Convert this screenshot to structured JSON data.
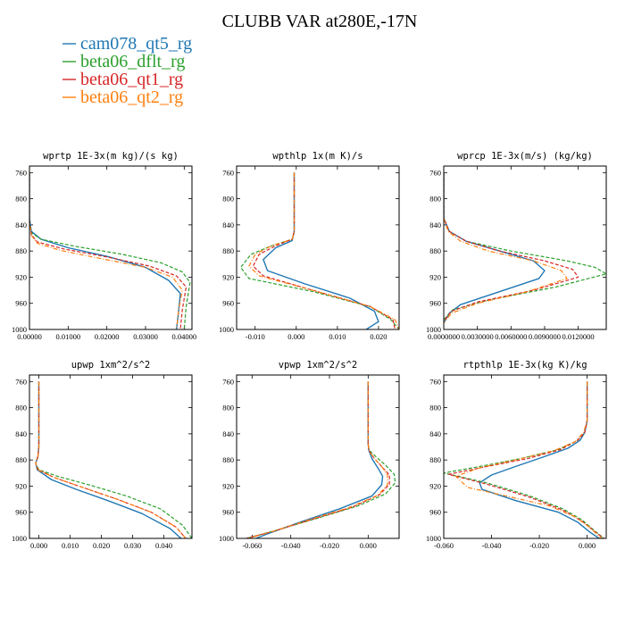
{
  "figure": {
    "title": "CLUBB VAR at280E,-17N"
  },
  "legend": [
    {
      "name": "cam078_qt5_rg",
      "color": "#1f77b4",
      "dash": "solid"
    },
    {
      "name": "beta06_dflt_rg",
      "color": "#2ca02c",
      "dash": "dashed"
    },
    {
      "name": "beta06_qt1_rg",
      "color": "#d62728",
      "dash": "dashed"
    },
    {
      "name": "beta06_qt2_rg",
      "color": "#ff7f0e",
      "dash": "dashdot"
    }
  ],
  "chart_data": [
    {
      "type": "line",
      "title": "wprtp  1E-3x(m kg)/(s kg)",
      "xlim": [
        0,
        0.042
      ],
      "ylim": [
        1000,
        750
      ],
      "xticks": [
        0,
        0.01,
        0.02,
        0.03,
        0.04
      ],
      "xtick_labels": [
        "0.00000",
        "0.01000",
        "0.02000",
        "0.03000",
        "0.04000"
      ],
      "yticks": [
        760,
        800,
        840,
        880,
        920,
        960,
        1000
      ],
      "series": [
        {
          "name": "cam078_qt5_rg",
          "x": [
            0,
            0,
            0.0005,
            0.003,
            0.01,
            0.02,
            0.03,
            0.036,
            0.039,
            0.0385,
            0.038
          ],
          "y": [
            760,
            830,
            850,
            862,
            875,
            888,
            905,
            925,
            945,
            975,
            1000
          ]
        },
        {
          "name": "beta06_dflt_rg",
          "x": [
            0,
            0,
            0.0005,
            0.003,
            0.012,
            0.024,
            0.034,
            0.0395,
            0.0415,
            0.0405,
            0.04
          ],
          "y": [
            760,
            835,
            852,
            862,
            873,
            885,
            898,
            912,
            928,
            965,
            1000
          ]
        },
        {
          "name": "beta06_qt1_rg",
          "x": [
            0,
            0,
            0.0005,
            0.002,
            0.009,
            0.02,
            0.031,
            0.038,
            0.0405,
            0.0395,
            0.039
          ],
          "y": [
            760,
            835,
            855,
            866,
            877,
            889,
            903,
            918,
            935,
            970,
            1000
          ]
        },
        {
          "name": "beta06_qt2_rg",
          "x": [
            0,
            0,
            0.0005,
            0.002,
            0.008,
            0.018,
            0.03,
            0.037,
            0.0395,
            0.0385,
            0.038
          ],
          "y": [
            760,
            835,
            856,
            868,
            879,
            891,
            905,
            920,
            940,
            972,
            1000
          ]
        }
      ]
    },
    {
      "type": "line",
      "title": "wpthlp  1x(m K)/s",
      "xlim": [
        -0.0145,
        0.025
      ],
      "ylim": [
        1000,
        750
      ],
      "xticks": [
        -0.01,
        0,
        0.01,
        0.02
      ],
      "xtick_labels": [
        "-0.010",
        "0.000",
        "0.010",
        "0.020"
      ],
      "yticks": [
        760,
        800,
        840,
        880,
        920,
        960,
        1000
      ],
      "series": [
        {
          "name": "cam078_qt5_rg",
          "x": [
            -0.0005,
            -0.0005,
            -0.001,
            -0.005,
            -0.008,
            -0.007,
            0.002,
            0.013,
            0.019,
            0.02,
            0.017
          ],
          "y": [
            760,
            850,
            864,
            875,
            893,
            910,
            930,
            952,
            972,
            988,
            1000
          ]
        },
        {
          "name": "beta06_dflt_rg",
          "x": [
            -0.0005,
            -0.0005,
            -0.001,
            -0.006,
            -0.011,
            -0.0135,
            -0.0115,
            0.004,
            0.018,
            0.023,
            0.025
          ],
          "y": [
            760,
            850,
            862,
            872,
            885,
            905,
            922,
            942,
            965,
            985,
            1000
          ]
        },
        {
          "name": "beta06_qt1_rg",
          "x": [
            -0.0005,
            -0.0005,
            -0.001,
            -0.005,
            -0.009,
            -0.0105,
            -0.008,
            0.004,
            0.018,
            0.0235,
            0.024
          ],
          "y": [
            760,
            850,
            862,
            872,
            885,
            903,
            918,
            940,
            965,
            985,
            1000
          ]
        },
        {
          "name": "beta06_qt2_rg",
          "x": [
            -0.0005,
            -0.0005,
            -0.001,
            -0.006,
            -0.01,
            -0.0115,
            -0.009,
            0.004,
            0.018,
            0.024,
            0.025
          ],
          "y": [
            760,
            850,
            862,
            872,
            885,
            903,
            918,
            940,
            965,
            985,
            1000
          ]
        }
      ]
    },
    {
      "type": "line",
      "title": "wprcp  1E-3x(m/s) (kg/kg)",
      "xlim": [
        0,
        0.0145
      ],
      "ylim": [
        1000,
        750
      ],
      "xticks": [
        0,
        0.003,
        0.006,
        0.009,
        0.012
      ],
      "xtick_labels": [
        "0.0000000",
        "0.0030000",
        "0.0060000",
        "0.0090000",
        "0.0120000"
      ],
      "yticks": [
        760,
        800,
        840,
        880,
        920,
        960,
        1000
      ],
      "series": [
        {
          "name": "cam078_qt5_rg",
          "x": [
            0,
            0,
            0.0005,
            0.002,
            0.005,
            0.008,
            0.009,
            0.0085,
            0.005,
            0.0015,
            0.0005,
            0
          ],
          "y": [
            760,
            830,
            850,
            865,
            880,
            895,
            910,
            922,
            942,
            962,
            975,
            990
          ]
        },
        {
          "name": "beta06_dflt_rg",
          "x": [
            0,
            0,
            0.0005,
            0.002,
            0.006,
            0.011,
            0.0135,
            0.0145,
            0.01,
            0.004,
            0.0008,
            0
          ],
          "y": [
            760,
            830,
            850,
            865,
            880,
            895,
            905,
            915,
            935,
            955,
            970,
            985
          ]
        },
        {
          "name": "beta06_qt1_rg",
          "x": [
            0,
            0,
            0.0005,
            0.002,
            0.005,
            0.009,
            0.0115,
            0.012,
            0.008,
            0.003,
            0.0007,
            0
          ],
          "y": [
            760,
            830,
            850,
            865,
            880,
            895,
            908,
            920,
            940,
            958,
            972,
            987
          ]
        },
        {
          "name": "beta06_qt2_rg",
          "x": [
            0,
            0,
            0.0004,
            0.0015,
            0.004,
            0.008,
            0.0105,
            0.011,
            0.0075,
            0.003,
            0.0007,
            0
          ],
          "y": [
            760,
            830,
            850,
            865,
            880,
            895,
            910,
            922,
            942,
            960,
            975,
            990
          ]
        }
      ]
    },
    {
      "type": "line",
      "title": "upwp  1xm^2/s^2",
      "xlim": [
        -0.003,
        0.049
      ],
      "ylim": [
        1000,
        750
      ],
      "xticks": [
        0,
        0.01,
        0.02,
        0.03,
        0.04
      ],
      "xtick_labels": [
        "0.000",
        "0.010",
        "0.020",
        "0.030",
        "0.040"
      ],
      "yticks": [
        760,
        800,
        840,
        880,
        920,
        960,
        1000
      ],
      "series": [
        {
          "name": "cam078_qt5_rg",
          "x": [
            0,
            0,
            -0.0003,
            -0.001,
            -0.0005,
            0.004,
            0.012,
            0.022,
            0.033,
            0.042,
            0.0455
          ],
          "y": [
            760,
            860,
            875,
            885,
            895,
            910,
            925,
            942,
            962,
            985,
            1000
          ]
        },
        {
          "name": "beta06_dflt_rg",
          "x": [
            0,
            0,
            -0.0003,
            -0.001,
            0,
            0.006,
            0.016,
            0.028,
            0.039,
            0.046,
            0.049
          ],
          "y": [
            760,
            860,
            875,
            885,
            895,
            905,
            918,
            935,
            955,
            980,
            1000
          ]
        },
        {
          "name": "beta06_qt1_rg",
          "x": [
            0,
            0,
            -0.0003,
            -0.001,
            -0.0003,
            0.005,
            0.014,
            0.025,
            0.036,
            0.044,
            0.047
          ],
          "y": [
            760,
            860,
            875,
            885,
            895,
            907,
            922,
            940,
            960,
            983,
            1000
          ]
        },
        {
          "name": "beta06_qt2_rg",
          "x": [
            0,
            0,
            -0.0003,
            -0.001,
            -0.0003,
            0.005,
            0.014,
            0.025,
            0.036,
            0.044,
            0.047
          ],
          "y": [
            760,
            860,
            875,
            885,
            895,
            907,
            922,
            940,
            960,
            983,
            1000
          ]
        }
      ]
    },
    {
      "type": "line",
      "title": "vpwp  1xm^2/s^2",
      "xlim": [
        -0.068,
        0.016
      ],
      "ylim": [
        1000,
        750
      ],
      "xticks": [
        -0.06,
        -0.04,
        -0.02,
        0
      ],
      "xtick_labels": [
        "-0.060",
        "-0.040",
        "-0.020",
        "0.000"
      ],
      "yticks": [
        760,
        800,
        840,
        880,
        920,
        960,
        1000
      ],
      "series": [
        {
          "name": "cam078_qt5_rg",
          "x": [
            0,
            0,
            0.0003,
            0.002,
            0.005,
            0.0075,
            0.007,
            0.002,
            -0.015,
            -0.035,
            -0.052,
            -0.058
          ],
          "y": [
            760,
            855,
            865,
            878,
            892,
            905,
            918,
            935,
            955,
            975,
            993,
            1000
          ]
        },
        {
          "name": "beta06_dflt_rg",
          "x": [
            0,
            0,
            0.0005,
            0.004,
            0.009,
            0.0135,
            0.014,
            0.009,
            -0.005,
            -0.025,
            -0.048,
            -0.063
          ],
          "y": [
            760,
            855,
            865,
            875,
            888,
            902,
            915,
            932,
            950,
            968,
            988,
            1000
          ]
        },
        {
          "name": "beta06_qt1_rg",
          "x": [
            0,
            0,
            0.0003,
            0.003,
            0.007,
            0.011,
            0.011,
            0.006,
            -0.008,
            -0.028,
            -0.05,
            -0.063
          ],
          "y": [
            760,
            855,
            865,
            877,
            890,
            903,
            917,
            933,
            952,
            970,
            990,
            1000
          ]
        },
        {
          "name": "beta06_qt2_rg",
          "x": [
            0,
            0,
            0.0003,
            0.003,
            0.007,
            0.01,
            0.01,
            0.005,
            -0.01,
            -0.03,
            -0.05,
            -0.062
          ],
          "y": [
            760,
            855,
            865,
            877,
            890,
            903,
            918,
            934,
            953,
            971,
            990,
            1000
          ]
        }
      ]
    },
    {
      "type": "line",
      "title": "rtpthlp  1E-3x(kg K)/kg",
      "xlim": [
        -0.06,
        0.008
      ],
      "ylim": [
        1000,
        750
      ],
      "xticks": [
        -0.06,
        -0.04,
        -0.02,
        0
      ],
      "xtick_labels": [
        "-0.060",
        "-0.040",
        "-0.020",
        "0.000"
      ],
      "yticks": [
        760,
        800,
        840,
        880,
        920,
        960,
        1000
      ],
      "series": [
        {
          "name": "cam078_qt5_rg",
          "x": [
            0,
            0,
            -0.001,
            -0.003,
            -0.008,
            -0.018,
            -0.03,
            -0.04,
            -0.045,
            -0.044,
            -0.03,
            -0.012,
            -0.004,
            0.001,
            0.005
          ],
          "y": [
            760,
            820,
            838,
            850,
            862,
            875,
            890,
            903,
            915,
            925,
            942,
            960,
            975,
            990,
            1000
          ]
        },
        {
          "name": "beta06_dflt_rg",
          "x": [
            0,
            0,
            -0.001,
            -0.004,
            -0.012,
            -0.028,
            -0.045,
            -0.06,
            -0.042,
            -0.024,
            -0.01,
            -0.002,
            0.003,
            0.007
          ],
          "y": [
            760,
            820,
            838,
            850,
            864,
            878,
            890,
            900,
            915,
            935,
            955,
            972,
            988,
            1000
          ]
        },
        {
          "name": "beta06_qt1_rg",
          "x": [
            0,
            0,
            -0.001,
            -0.004,
            -0.011,
            -0.025,
            -0.042,
            -0.058,
            -0.042,
            -0.024,
            -0.01,
            -0.002,
            0.003,
            0.007
          ],
          "y": [
            760,
            820,
            838,
            850,
            864,
            878,
            890,
            902,
            917,
            937,
            957,
            974,
            989,
            1000
          ]
        },
        {
          "name": "beta06_qt2_rg",
          "x": [
            0,
            0,
            -0.0015,
            -0.005,
            -0.014,
            -0.03,
            -0.045,
            -0.055,
            -0.05,
            -0.034,
            -0.016,
            -0.005,
            0.001,
            0.006
          ],
          "y": [
            760,
            820,
            838,
            852,
            866,
            880,
            892,
            905,
            922,
            935,
            950,
            967,
            983,
            1000
          ]
        }
      ]
    }
  ]
}
